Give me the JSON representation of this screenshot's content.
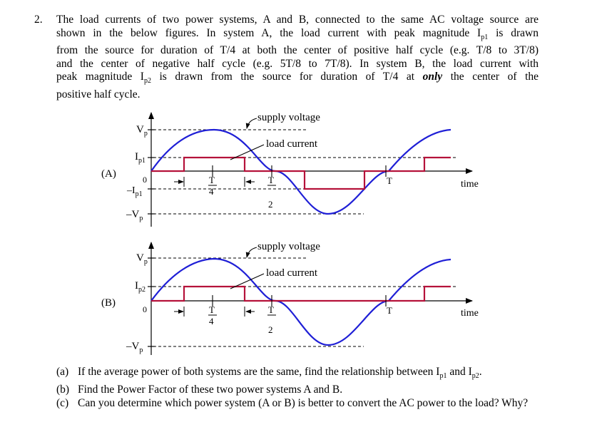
{
  "question": {
    "number": "2.",
    "lines": [
      "The load currents of two power systems, A and B, connected to the same AC voltage source are",
      "shown in the below figures.  In system A, the load current with peak magnitude I",
      "from the source for duration of T/4 at both the center of positive half cycle (e.g. T/8 to 3T/8)",
      "and the center of negative half cycle (e.g. 5T/8 to 7T/8).  In system B, the load current with",
      "peak magnitude I",
      "positive half cycle."
    ],
    "line2_sub": "p1",
    "line2_tail": " is drawn",
    "line5_sub": "p2",
    "line5_mid": " is drawn from the source for duration of T/4 at ",
    "line5_em": "only",
    "line5_tail": " the center of the"
  },
  "figure_a": {
    "label": "(A)",
    "vp": "V",
    "vp_sub": "p",
    "ip": "I",
    "ip_sub": "p1",
    "zero": "0",
    "neg_ip": "–I",
    "neg_ip_sub": "p1",
    "neg_vp": "–V",
    "neg_vp_sub": "p",
    "supply_label": "supply voltage",
    "load_label": "load current",
    "time_label": "time",
    "t_over_4_num": "T",
    "t_over_4_den": "4",
    "t_over_2_num": "T",
    "t_over_2_den": "2",
    "t_label": "T"
  },
  "figure_b": {
    "label": "(B)",
    "vp": "V",
    "vp_sub": "p",
    "ip": "I",
    "ip_sub": "p2",
    "zero": "0",
    "neg_vp": "–V",
    "neg_vp_sub": "p",
    "supply_label": "supply voltage",
    "load_label": "load current",
    "time_label": "time",
    "t_over_4_num": "T",
    "t_over_4_den": "4",
    "t_over_2_num": "T",
    "t_over_2_den": "2",
    "t_label": "T"
  },
  "sub_questions": [
    {
      "label": "(a)",
      "text_pre": "If the average power of both systems are the same, find the relationship between I",
      "sub1": "p1",
      "mid": " and I",
      "sub2": "p2",
      "text_post": "."
    },
    {
      "label": "(b)",
      "text_pre": "Find the Power Factor of these two power systems A and B."
    },
    {
      "label": "(c)",
      "text_pre": "Can you determine which power system (A or B) is better to convert the AC power to the load? Why?"
    }
  ],
  "colors": {
    "voltage": "#1f1fd6",
    "current": "#b5123a",
    "axis": "#000000"
  }
}
